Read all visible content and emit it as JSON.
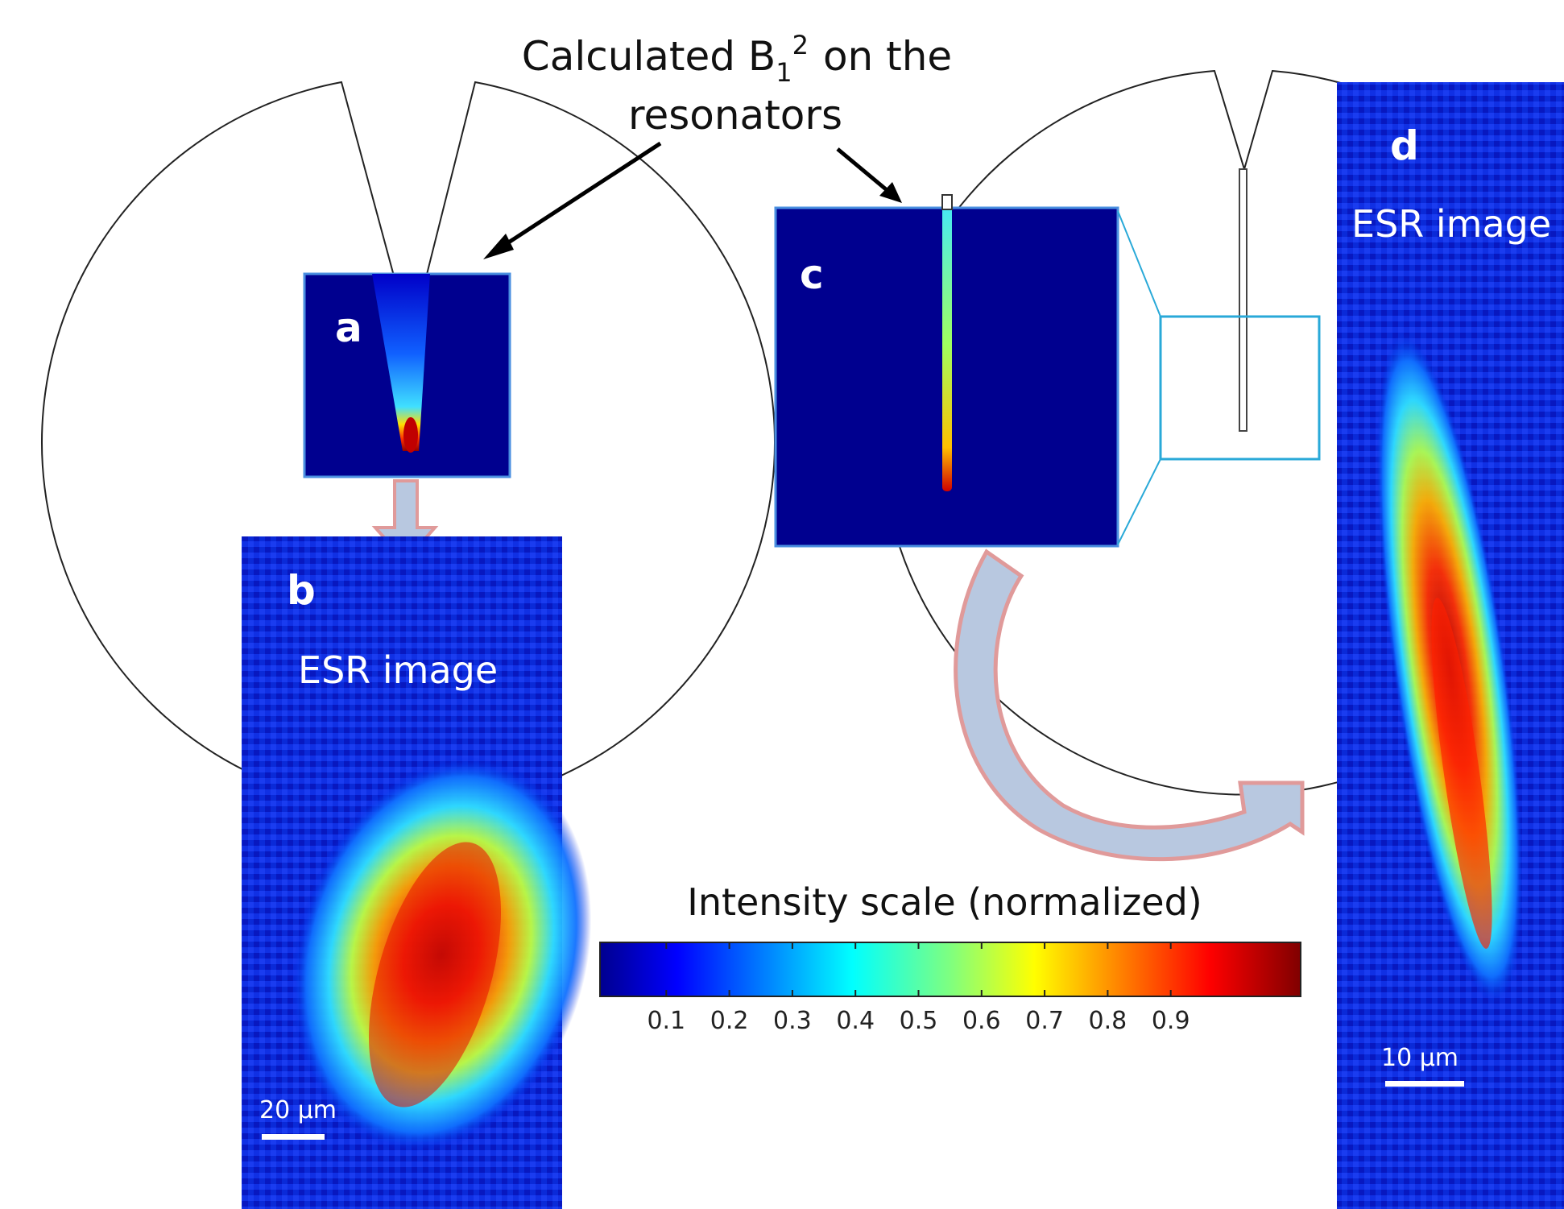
{
  "top_caption": {
    "line1_prefix": "Calculated B",
    "subscript": "1",
    "superscript": "2",
    "line1_suffix": "on the",
    "line2": "resonators"
  },
  "panels": {
    "a": {
      "letter": "a"
    },
    "b": {
      "letter": "b",
      "title": "ESR image",
      "scalebar": "20 µm"
    },
    "c": {
      "letter": "c"
    },
    "d": {
      "letter": "d",
      "title": "ESR image",
      "scalebar": "10 µm"
    }
  },
  "colorbar": {
    "title": "Intensity scale (normalized)",
    "ticks": [
      "0.1",
      "0.2",
      "0.3",
      "0.4",
      "0.5",
      "0.6",
      "0.7",
      "0.8",
      "0.9"
    ],
    "colormap": "jet"
  },
  "colors": {
    "field_background": "#00008f",
    "arrow_fill": "#b8c8e0",
    "arrow_stroke": "#e09a9a",
    "zoom_box": "#29a9d8",
    "outline": "#222222"
  },
  "icons": {
    "annotation_arrow": "arrow-icon",
    "flow_arrow": "block-arrow-icon",
    "curved_flow_arrow": "curved-arrow-icon"
  }
}
